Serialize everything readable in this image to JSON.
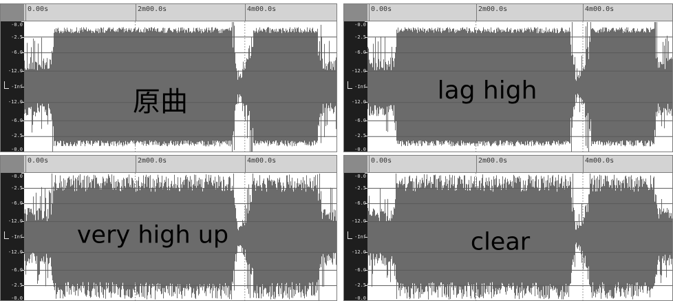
{
  "colors": {
    "waveform": "#6b6b6b",
    "background": "#ffffff",
    "timeline": "#d3d3d3",
    "ruler": "#1e1e1e",
    "grid": "#5a5a5a"
  },
  "panels": [
    {
      "id": "panel-original",
      "caption": "原曲",
      "time_labels": [
        "0.00s",
        "2m00.0s",
        "4m00.0s"
      ],
      "db_labels": [
        "-0.0",
        "-2.5",
        "-6.0",
        "-12.0",
        "-Inf",
        "-12.0",
        "-6.0",
        "-2.5",
        "-0.0"
      ],
      "waveform_style": "normal"
    },
    {
      "id": "panel-lag-high",
      "caption": "lag high",
      "time_labels": [
        "0.00s",
        "2m00.0s",
        "4m00.0s"
      ],
      "db_labels": [
        "-0.0",
        "-2.5",
        "-6.0",
        "-12.0",
        "-Inf",
        "-12.0",
        "-6.0",
        "-2.5",
        "-0.0"
      ],
      "waveform_style": "normal"
    },
    {
      "id": "panel-very-high-up",
      "caption": "very high up",
      "time_labels": [
        "0.00s",
        "2m00.0s",
        "4m00.0s"
      ],
      "db_labels": [
        "-0.0",
        "-2.5",
        "-6.0",
        "-12.0",
        "-Inf",
        "-12.0",
        "-6.0",
        "-2.5",
        "-0.0"
      ],
      "waveform_style": "spiky"
    },
    {
      "id": "panel-clear",
      "caption": "clear",
      "time_labels": [
        "0.00s",
        "2m00.0s",
        "4m00.0s"
      ],
      "db_labels": [
        "-0.0",
        "-2.5",
        "-6.0",
        "-12.0",
        "-Inf",
        "-12.0",
        "-6.0",
        "-2.5",
        "-0.0"
      ],
      "waveform_style": "spiky"
    }
  ]
}
